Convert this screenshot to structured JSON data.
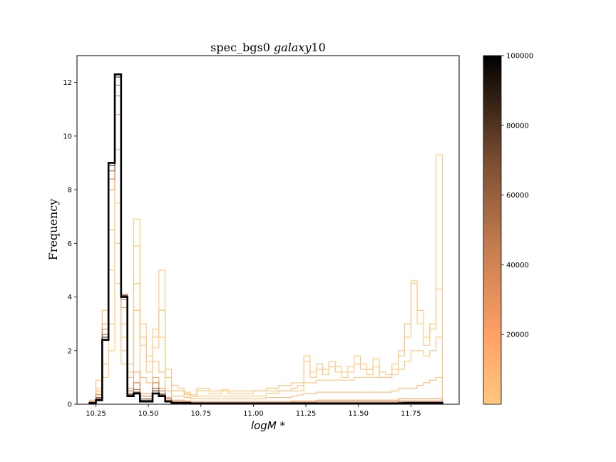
{
  "chart_data": {
    "type": "histogram",
    "title": {
      "prefix": "spec_bgs0 ",
      "italic": "galaxy",
      "suffix": "10"
    },
    "xlabel": "logM *",
    "ylabel": "Frequency",
    "xlim": [
      10.16,
      11.98
    ],
    "ylim": [
      0,
      13
    ],
    "xticks": [
      "10.25",
      "10.50",
      "10.75",
      "11.00",
      "11.25",
      "11.50",
      "11.75"
    ],
    "yticks": [
      "0",
      "2",
      "4",
      "6",
      "8",
      "10",
      "12"
    ],
    "bin_edges": [
      10.22,
      10.25,
      10.28,
      10.31,
      10.34,
      10.37,
      10.4,
      10.43,
      10.46,
      10.49,
      10.52,
      10.55,
      10.58,
      10.61,
      10.64,
      10.67,
      10.7,
      10.73,
      10.76,
      10.79,
      10.82,
      10.85,
      10.88,
      10.91,
      10.94,
      10.97,
      11.0,
      11.03,
      11.06,
      11.09,
      11.12,
      11.15,
      11.18,
      11.21,
      11.24,
      11.27,
      11.3,
      11.33,
      11.36,
      11.39,
      11.42,
      11.45,
      11.48,
      11.51,
      11.54,
      11.57,
      11.6,
      11.63,
      11.66,
      11.69,
      11.72,
      11.75,
      11.78,
      11.81,
      11.84,
      11.87,
      11.9
    ],
    "series": [
      {
        "iteration": 100000,
        "values": [
          0.05,
          0.15,
          2.4,
          9.0,
          12.3,
          4.0,
          0.3,
          0.4,
          0.1,
          0.1,
          0.4,
          0.3,
          0.1,
          0.05,
          0.05,
          0.05,
          0.03,
          0.03,
          0.03,
          0.03,
          0.03,
          0.03,
          0.03,
          0.03,
          0.03,
          0.03,
          0.03,
          0.03,
          0.03,
          0.03,
          0.03,
          0.03,
          0.03,
          0.03,
          0.03,
          0.03,
          0.03,
          0.03,
          0.03,
          0.03,
          0.03,
          0.03,
          0.03,
          0.03,
          0.03,
          0.03,
          0.03,
          0.03,
          0.03,
          0.03,
          0.05,
          0.05,
          0.05,
          0.05,
          0.05,
          0.05
        ]
      },
      {
        "iteration": 80000,
        "values": [
          0.05,
          0.2,
          2.5,
          8.9,
          12.2,
          4.05,
          0.35,
          0.45,
          0.15,
          0.15,
          0.5,
          0.35,
          0.12,
          0.06,
          0.06,
          0.06,
          0.04,
          0.04,
          0.04,
          0.04,
          0.04,
          0.04,
          0.04,
          0.04,
          0.04,
          0.04,
          0.04,
          0.04,
          0.04,
          0.04,
          0.04,
          0.04,
          0.05,
          0.05,
          0.05,
          0.05,
          0.05,
          0.05,
          0.05,
          0.05,
          0.05,
          0.05,
          0.05,
          0.05,
          0.05,
          0.05,
          0.05,
          0.05,
          0.05,
          0.06,
          0.06,
          0.06,
          0.06,
          0.06,
          0.06,
          0.06
        ]
      },
      {
        "iteration": 60000,
        "values": [
          0.06,
          0.25,
          2.6,
          8.7,
          11.9,
          4.1,
          0.4,
          0.55,
          0.2,
          0.2,
          0.6,
          0.4,
          0.15,
          0.08,
          0.07,
          0.07,
          0.05,
          0.05,
          0.05,
          0.05,
          0.05,
          0.05,
          0.05,
          0.05,
          0.05,
          0.05,
          0.05,
          0.05,
          0.05,
          0.05,
          0.05,
          0.05,
          0.06,
          0.06,
          0.06,
          0.06,
          0.06,
          0.06,
          0.06,
          0.06,
          0.06,
          0.06,
          0.06,
          0.06,
          0.06,
          0.06,
          0.06,
          0.06,
          0.06,
          0.08,
          0.08,
          0.08,
          0.08,
          0.08,
          0.08,
          0.08
        ]
      },
      {
        "iteration": 40000,
        "values": [
          0.08,
          0.35,
          2.8,
          8.4,
          11.5,
          3.9,
          0.5,
          0.8,
          0.3,
          0.3,
          0.8,
          0.5,
          0.2,
          0.1,
          0.1,
          0.1,
          0.07,
          0.07,
          0.07,
          0.07,
          0.07,
          0.07,
          0.07,
          0.07,
          0.07,
          0.07,
          0.07,
          0.07,
          0.07,
          0.07,
          0.07,
          0.07,
          0.08,
          0.08,
          0.08,
          0.08,
          0.1,
          0.1,
          0.1,
          0.1,
          0.1,
          0.1,
          0.1,
          0.1,
          0.1,
          0.1,
          0.1,
          0.1,
          0.1,
          0.12,
          0.12,
          0.12,
          0.12,
          0.12,
          0.12,
          0.12
        ]
      },
      {
        "iteration": 20000,
        "values": [
          0.1,
          0.5,
          3.0,
          8.0,
          10.8,
          3.6,
          0.6,
          1.2,
          0.4,
          0.4,
          1.0,
          0.6,
          0.25,
          0.15,
          0.15,
          0.12,
          0.1,
          0.1,
          0.1,
          0.1,
          0.1,
          0.1,
          0.1,
          0.1,
          0.1,
          0.1,
          0.1,
          0.1,
          0.1,
          0.1,
          0.1,
          0.1,
          0.12,
          0.12,
          0.12,
          0.12,
          0.15,
          0.15,
          0.15,
          0.15,
          0.15,
          0.15,
          0.15,
          0.15,
          0.15,
          0.15,
          0.15,
          0.15,
          0.15,
          0.2,
          0.2,
          0.2,
          0.2,
          0.2,
          0.2,
          0.2
        ]
      },
      {
        "iteration": 5000,
        "values": [
          0.15,
          0.9,
          3.5,
          6.5,
          9.5,
          3.0,
          1.0,
          3.5,
          1.0,
          0.8,
          1.6,
          1.2,
          0.5,
          0.3,
          0.3,
          0.25,
          0.2,
          0.2,
          0.2,
          0.2,
          0.2,
          0.2,
          0.2,
          0.2,
          0.2,
          0.2,
          0.2,
          0.2,
          0.25,
          0.25,
          0.25,
          0.25,
          0.3,
          0.35,
          0.4,
          0.4,
          0.45,
          0.45,
          0.45,
          0.45,
          0.45,
          0.45,
          0.45,
          0.45,
          0.45,
          0.45,
          0.45,
          0.45,
          0.5,
          0.6,
          0.6,
          0.6,
          0.7,
          0.8,
          0.9,
          1.0
        ]
      },
      {
        "iteration": 1000,
        "values": [
          0.1,
          0.6,
          2.5,
          5.0,
          7.5,
          2.5,
          1.5,
          5.9,
          2.2,
          1.2,
          2.1,
          5.0,
          1.0,
          0.5,
          0.5,
          0.35,
          0.3,
          0.3,
          0.3,
          0.3,
          0.3,
          0.3,
          0.3,
          0.3,
          0.3,
          0.3,
          0.3,
          0.3,
          0.4,
          0.4,
          0.5,
          0.5,
          0.6,
          0.7,
          1.8,
          1.2,
          1.5,
          1.3,
          1.6,
          1.4,
          1.2,
          1.4,
          1.8,
          1.5,
          1.3,
          1.7,
          1.2,
          1.1,
          1.5,
          2.0,
          3.0,
          4.5,
          3.5,
          2.5,
          3.0,
          9.3
        ]
      },
      {
        "iteration": 500,
        "values": [
          0.05,
          0.4,
          1.5,
          3.0,
          6.0,
          2.0,
          1.5,
          6.9,
          3.0,
          1.6,
          2.5,
          3.5,
          1.3,
          0.7,
          0.6,
          0.45,
          0.35,
          0.5,
          0.5,
          0.4,
          0.4,
          0.5,
          0.4,
          0.4,
          0.4,
          0.4,
          0.5,
          0.5,
          0.6,
          0.6,
          0.7,
          0.7,
          0.8,
          0.8,
          1.6,
          1.0,
          1.3,
          1.1,
          1.4,
          1.2,
          1.0,
          1.2,
          1.5,
          1.3,
          1.1,
          1.4,
          1.0,
          1.0,
          1.3,
          1.8,
          2.5,
          4.6,
          3.0,
          2.2,
          2.8,
          4.3
        ]
      },
      {
        "iteration": 100,
        "values": [
          0.05,
          0.2,
          1.0,
          2.0,
          4.5,
          1.5,
          1.2,
          4.5,
          2.5,
          1.8,
          2.8,
          2.5,
          1.0,
          0.5,
          0.5,
          0.4,
          0.3,
          0.6,
          0.6,
          0.5,
          0.5,
          0.55,
          0.5,
          0.5,
          0.5,
          0.5,
          0.5,
          0.5,
          0.5,
          0.5,
          0.5,
          0.5,
          0.5,
          0.5,
          0.8,
          0.8,
          0.9,
          0.9,
          0.9,
          0.9,
          0.9,
          0.9,
          1.0,
          1.0,
          1.0,
          1.0,
          1.0,
          1.0,
          1.1,
          1.3,
          1.6,
          2.0,
          2.0,
          1.8,
          2.0,
          2.5
        ]
      }
    ],
    "colorbar": {
      "colormap": "copper_r",
      "min": 0,
      "max": 100000,
      "ticks": [
        "20000",
        "40000",
        "60000",
        "80000",
        "100000"
      ],
      "low_color": "#ffc77f",
      "high_color": "#000000"
    },
    "grid": false
  }
}
